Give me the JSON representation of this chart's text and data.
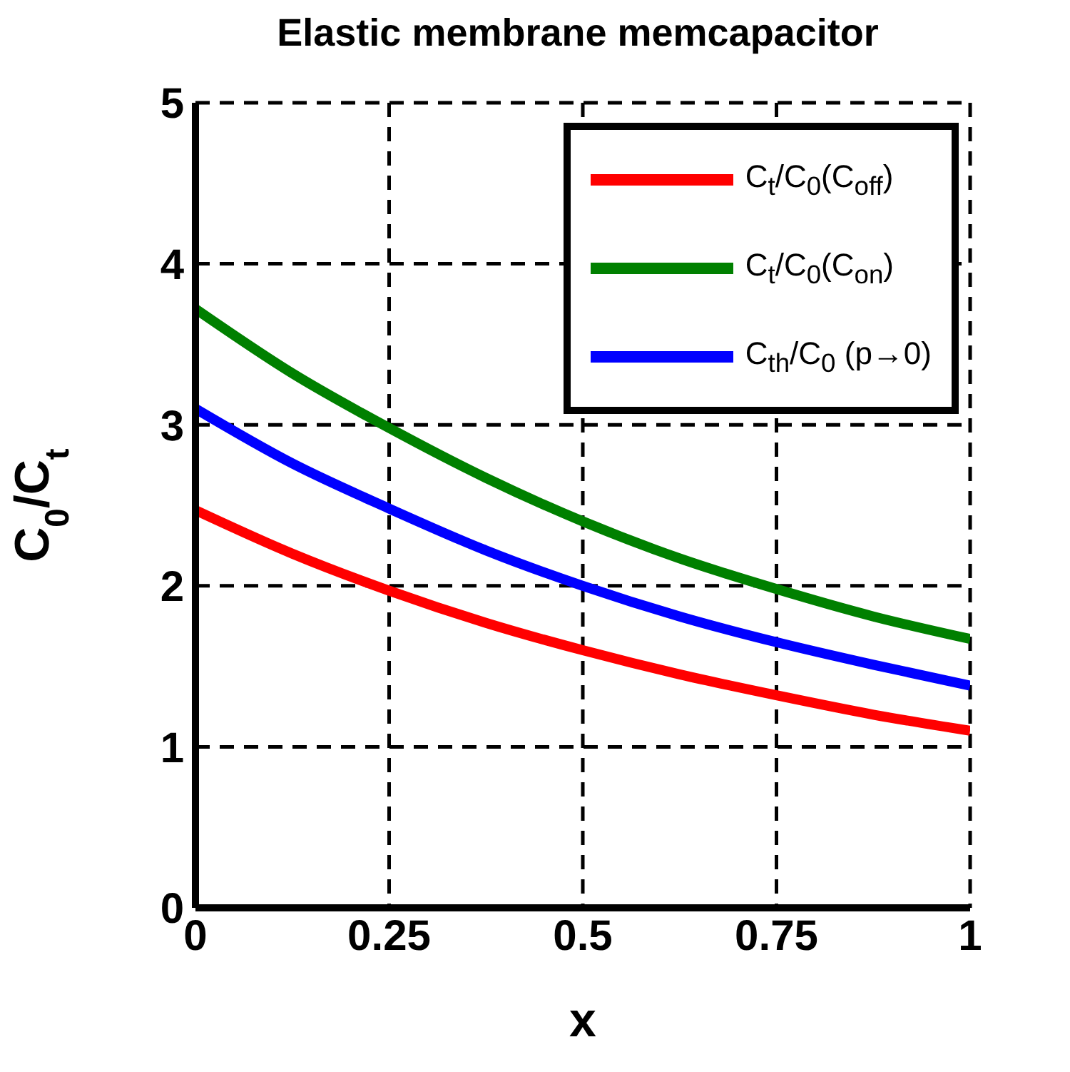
{
  "chart_data": {
    "type": "line",
    "title": "Elastic membrane memcapacitor",
    "xlabel": "x",
    "ylabel": "C$_{0}$/C$_{t}$",
    "x": [
      0,
      0.125,
      0.25,
      0.375,
      0.5,
      0.625,
      0.75,
      0.875,
      1
    ],
    "series": [
      {
        "name": "C$_{t}$/C$_{0}$(C$_{off}$)",
        "color": "#ff0000",
        "values": [
          2.47,
          2.2,
          1.97,
          1.77,
          1.6,
          1.45,
          1.32,
          1.2,
          1.1
        ]
      },
      {
        "name": "C$_{t}$/C$_{0}$(C$_{on}$)",
        "color": "#008000",
        "values": [
          3.72,
          3.32,
          2.98,
          2.67,
          2.4,
          2.17,
          1.98,
          1.81,
          1.67
        ]
      },
      {
        "name": "C$_{th}$/C$_{0}$ (p→0)",
        "color": "#0000ff",
        "values": [
          3.1,
          2.76,
          2.48,
          2.22,
          2.0,
          1.81,
          1.65,
          1.51,
          1.38
        ]
      }
    ],
    "xlim": [
      0,
      1
    ],
    "xticks": [
      0,
      0.25,
      0.5,
      0.75,
      1
    ],
    "ylim": [
      0,
      5
    ],
    "yticks": [
      0,
      1,
      2,
      3,
      4,
      5
    ],
    "grid": true,
    "legend": "top right",
    "marker": "none",
    "line_style": "solid"
  }
}
